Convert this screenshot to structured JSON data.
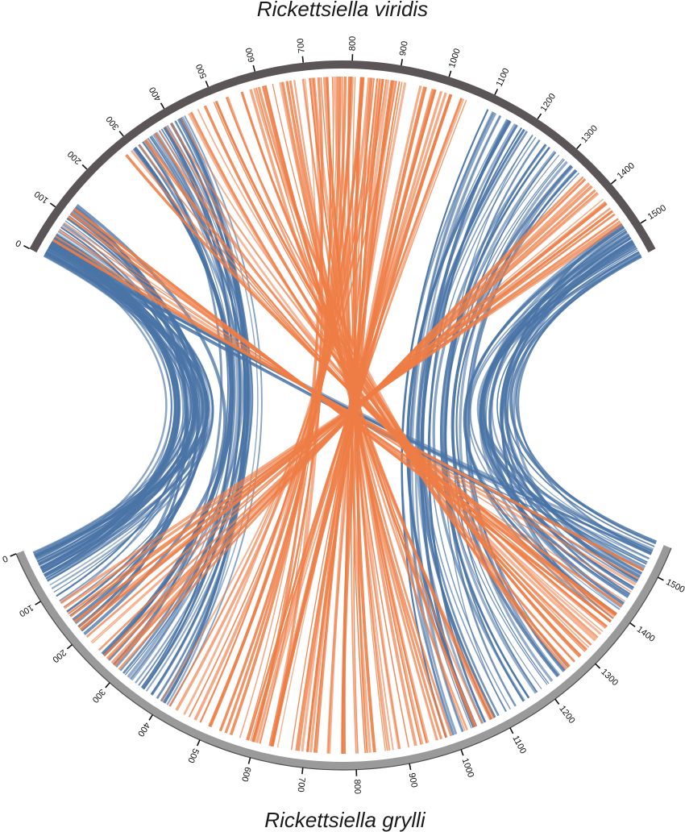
{
  "top_genome": {
    "name": "Rickettsiella viridis",
    "ticks": [
      "0",
      "100",
      "200",
      "300",
      "400",
      "500",
      "600",
      "700",
      "800",
      "900",
      "1000",
      "1100",
      "1200",
      "1300",
      "1400",
      "1500"
    ],
    "arc_color": "#5b5557"
  },
  "bottom_genome": {
    "name": "Rickettsiella grylli",
    "ticks": [
      "0",
      "100",
      "200",
      "300",
      "400",
      "500",
      "600",
      "700",
      "800",
      "900",
      "1000",
      "1100",
      "1200",
      "1300",
      "1400",
      "1500"
    ],
    "arc_color": "#9a9a9a"
  },
  "colors": {
    "forward_link": "#4a74a6",
    "inverted_link": "#ee7d45"
  },
  "chart_data": {
    "type": "circos-synteny",
    "units": "kb",
    "segments": [
      {
        "genome": "top",
        "name": "Rickettsiella viridis",
        "length": 1560
      },
      {
        "genome": "bottom",
        "name": "Rickettsiella grylli",
        "length": 1560
      }
    ],
    "link_blocks": [
      {
        "type": "forward",
        "top": [
          0,
          55
        ],
        "bottom": [
          10,
          75
        ],
        "count": 32
      },
      {
        "type": "forward",
        "top": [
          55,
          130
        ],
        "bottom": [
          80,
          200
        ],
        "count": 14
      },
      {
        "type": "forward",
        "top": [
          300,
          430
        ],
        "bottom": [
          250,
          420
        ],
        "count": 30
      },
      {
        "type": "forward",
        "top": [
          1100,
          1340
        ],
        "bottom": [
          980,
          1260
        ],
        "count": 34
      },
      {
        "type": "forward",
        "top": [
          1480,
          1560
        ],
        "bottom": [
          1380,
          1560
        ],
        "count": 34
      },
      {
        "type": "forward",
        "top": [
          10,
          30
        ],
        "bottom": [
          1500,
          1545
        ],
        "count": 5
      },
      {
        "type": "inverted",
        "top": [
          280,
          600
        ],
        "bottom": [
          1250,
          1400
        ],
        "count": 22
      },
      {
        "type": "inverted",
        "top": [
          580,
          1050
        ],
        "bottom": [
          580,
          1080
        ],
        "count": 55
      },
      {
        "type": "inverted",
        "top": [
          700,
          900
        ],
        "bottom": [
          400,
          640
        ],
        "count": 20
      },
      {
        "type": "inverted",
        "top": [
          1350,
          1480
        ],
        "bottom": [
          120,
          300
        ],
        "count": 16
      },
      {
        "type": "inverted",
        "top": [
          40,
          120
        ],
        "bottom": [
          1380,
          1500
        ],
        "count": 8
      }
    ]
  }
}
